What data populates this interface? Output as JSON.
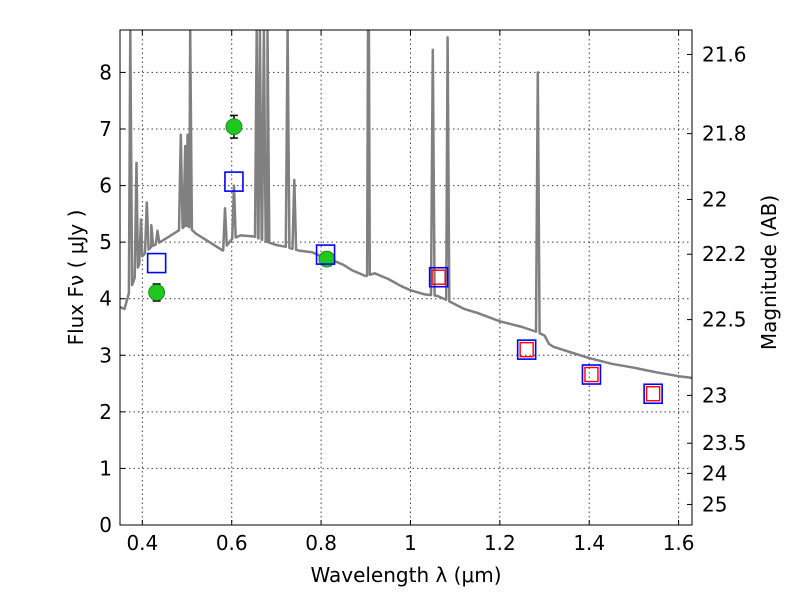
{
  "chart_data": {
    "type": "scatter",
    "title": "",
    "xlabel": "Wavelength  λ (μm)",
    "ylabel": "Flux  Fν  ( μJy )",
    "y2label": "Magnitude (AB)",
    "xlim": [
      0.35,
      1.63
    ],
    "ylim": [
      0,
      8.75
    ],
    "grid": true,
    "xticks": [
      0.4,
      0.6,
      0.8,
      1.0,
      1.2,
      1.4,
      1.6
    ],
    "xtick_labels": [
      "0.4",
      "0.6",
      "0.8",
      "1",
      "1.2",
      "1.4",
      "1.6"
    ],
    "yticks": [
      0,
      1,
      2,
      3,
      4,
      5,
      6,
      7,
      8
    ],
    "ytick_labels": [
      "0",
      "1",
      "2",
      "3",
      "4",
      "5",
      "6",
      "7",
      "8"
    ],
    "y2ticks": [
      21.6,
      21.8,
      22,
      22.2,
      22.5,
      23,
      23.5,
      24,
      25
    ],
    "y2tick_labels": [
      "21.6",
      "21.8",
      "22",
      "22.2",
      "22.5",
      "23",
      "23.5",
      "24",
      "25"
    ],
    "series": [
      {
        "type": "line",
        "color": "#808080",
        "continuum": [
          [
            0.35,
            3.85
          ],
          [
            0.36,
            3.82
          ],
          [
            0.37,
            4.1
          ],
          [
            0.38,
            4.3
          ],
          [
            0.39,
            4.55
          ],
          [
            0.4,
            4.75
          ],
          [
            0.42,
            4.92
          ],
          [
            0.44,
            5.0
          ],
          [
            0.46,
            5.1
          ],
          [
            0.48,
            5.2
          ],
          [
            0.5,
            5.3
          ],
          [
            0.52,
            5.15
          ],
          [
            0.55,
            5.0
          ],
          [
            0.58,
            4.85
          ],
          [
            0.6,
            5.05
          ],
          [
            0.62,
            5.12
          ],
          [
            0.65,
            5.1
          ],
          [
            0.68,
            5.0
          ],
          [
            0.7,
            4.95
          ],
          [
            0.72,
            4.92
          ],
          [
            0.75,
            4.85
          ],
          [
            0.78,
            4.82
          ],
          [
            0.8,
            4.75
          ],
          [
            0.82,
            4.7
          ],
          [
            0.85,
            4.6
          ],
          [
            0.87,
            4.5
          ],
          [
            0.9,
            4.4
          ],
          [
            0.92,
            4.45
          ],
          [
            0.95,
            4.35
          ],
          [
            0.98,
            4.22
          ],
          [
            1.0,
            4.15
          ],
          [
            1.03,
            4.08
          ],
          [
            1.06,
            4.05
          ],
          [
            1.08,
            3.98
          ],
          [
            1.1,
            3.9
          ],
          [
            1.12,
            3.82
          ],
          [
            1.15,
            3.75
          ],
          [
            1.2,
            3.6
          ],
          [
            1.25,
            3.5
          ],
          [
            1.28,
            3.42
          ],
          [
            1.3,
            3.35
          ],
          [
            1.31,
            3.2
          ],
          [
            1.32,
            3.15
          ],
          [
            1.36,
            3.05
          ],
          [
            1.4,
            2.95
          ],
          [
            1.45,
            2.85
          ],
          [
            1.5,
            2.78
          ],
          [
            1.55,
            2.7
          ],
          [
            1.6,
            2.63
          ],
          [
            1.63,
            2.6
          ]
        ],
        "lines": [
          [
            0.373,
            8.75
          ],
          [
            0.387,
            6.4
          ],
          [
            0.397,
            5.4
          ],
          [
            0.41,
            5.7
          ],
          [
            0.42,
            5.3
          ],
          [
            0.434,
            5.2
          ],
          [
            0.486,
            6.9
          ],
          [
            0.496,
            6.7
          ],
          [
            0.501,
            6.9
          ],
          [
            0.507,
            8.75
          ],
          [
            0.585,
            5.6
          ],
          [
            0.605,
            6.0
          ],
          [
            0.656,
            8.75
          ],
          [
            0.663,
            8.75
          ],
          [
            0.672,
            8.75
          ],
          [
            0.68,
            8.75
          ],
          [
            0.725,
            8.75
          ],
          [
            0.74,
            6.1
          ],
          [
            0.905,
            8.75
          ],
          [
            0.907,
            8.75
          ],
          [
            1.05,
            8.4
          ],
          [
            1.083,
            8.62
          ],
          [
            1.285,
            8.0
          ]
        ]
      },
      {
        "type": "scatter",
        "marker": "circle",
        "color": "#1ec81e",
        "points": [
          {
            "x": 0.432,
            "y": 4.11,
            "err": 0.15
          },
          {
            "x": 0.605,
            "y": 7.04,
            "err": 0.2
          },
          {
            "x": 0.813,
            "y": 4.7,
            "err": 0.12
          }
        ]
      },
      {
        "type": "scatter",
        "marker": "square-open",
        "color": "#0000ff",
        "points": [
          {
            "x": 0.432,
            "y": 4.63
          },
          {
            "x": 0.605,
            "y": 6.07
          },
          {
            "x": 0.81,
            "y": 4.78
          },
          {
            "x": 1.063,
            "y": 4.38
          },
          {
            "x": 1.26,
            "y": 3.1
          },
          {
            "x": 1.405,
            "y": 2.66
          },
          {
            "x": 1.543,
            "y": 2.32
          }
        ]
      },
      {
        "type": "scatter",
        "marker": "square-open",
        "color": "#ff0000",
        "points": [
          {
            "x": 1.063,
            "y": 4.38
          },
          {
            "x": 1.26,
            "y": 3.1
          },
          {
            "x": 1.405,
            "y": 2.66
          },
          {
            "x": 1.543,
            "y": 2.32
          }
        ]
      }
    ]
  }
}
